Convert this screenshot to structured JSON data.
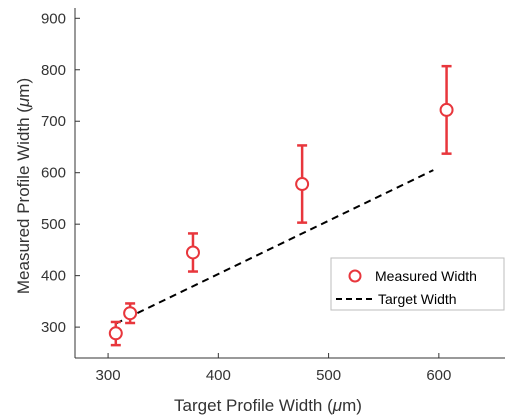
{
  "chart_data": {
    "type": "scatter",
    "xlabel": "Target Profile Width (μm)",
    "ylabel": "Measured Profile Width (μm)",
    "xlim": [
      270,
      660
    ],
    "ylim": [
      240,
      920
    ],
    "x_ticks": [
      300,
      400,
      500,
      600
    ],
    "y_ticks": [
      300,
      400,
      500,
      600,
      700,
      800,
      900
    ],
    "grid": false,
    "legend_position": "lower-right",
    "series": [
      {
        "name": "Measured Width",
        "kind": "scatter-errorbar",
        "marker": "open-circle",
        "color": "#e8363c",
        "points": [
          {
            "x": 307,
            "y": 288,
            "err_low": 265,
            "err_high": 310
          },
          {
            "x": 320,
            "y": 327,
            "err_low": 308,
            "err_high": 346
          },
          {
            "x": 377,
            "y": 445,
            "err_low": 408,
            "err_high": 482
          },
          {
            "x": 476,
            "y": 578,
            "err_low": 503,
            "err_high": 653
          },
          {
            "x": 607,
            "y": 722,
            "err_low": 637,
            "err_high": 807
          }
        ]
      },
      {
        "name": "Target Width",
        "kind": "line",
        "style": "dashed",
        "color": "#000000",
        "points": [
          {
            "x": 307,
            "y": 307
          },
          {
            "x": 595,
            "y": 605
          }
        ]
      }
    ]
  }
}
